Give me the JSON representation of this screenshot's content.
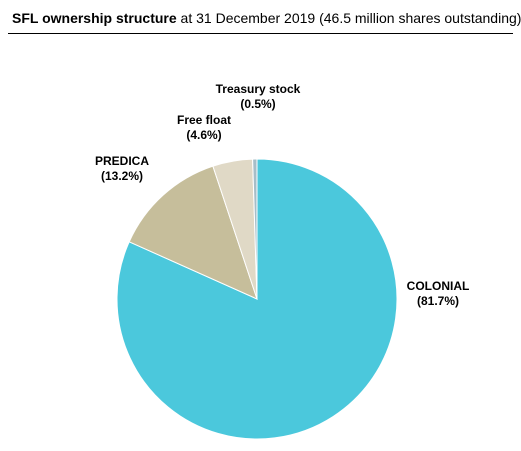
{
  "header": {
    "title_bold": "SFL ownership structure",
    "title_rest": " at 31 December 2019 (46.5 million shares outstanding)"
  },
  "chart_data": {
    "type": "pie",
    "start_angle_deg": 0,
    "direction": "clockwise",
    "slices": [
      {
        "name": "COLONIAL",
        "value": 81.7,
        "display": "(81.7%)",
        "color": "#4bc8dc"
      },
      {
        "name": "PREDICA",
        "value": 13.2,
        "display": "(13.2%)",
        "color": "#c6be9b"
      },
      {
        "name": "Free float",
        "value": 4.6,
        "display": "(4.6%)",
        "color": "#e0d9c6"
      },
      {
        "name": "Treasury stock",
        "value": 0.5,
        "display": "(0.5%)",
        "color": "#a6bec8"
      }
    ]
  }
}
